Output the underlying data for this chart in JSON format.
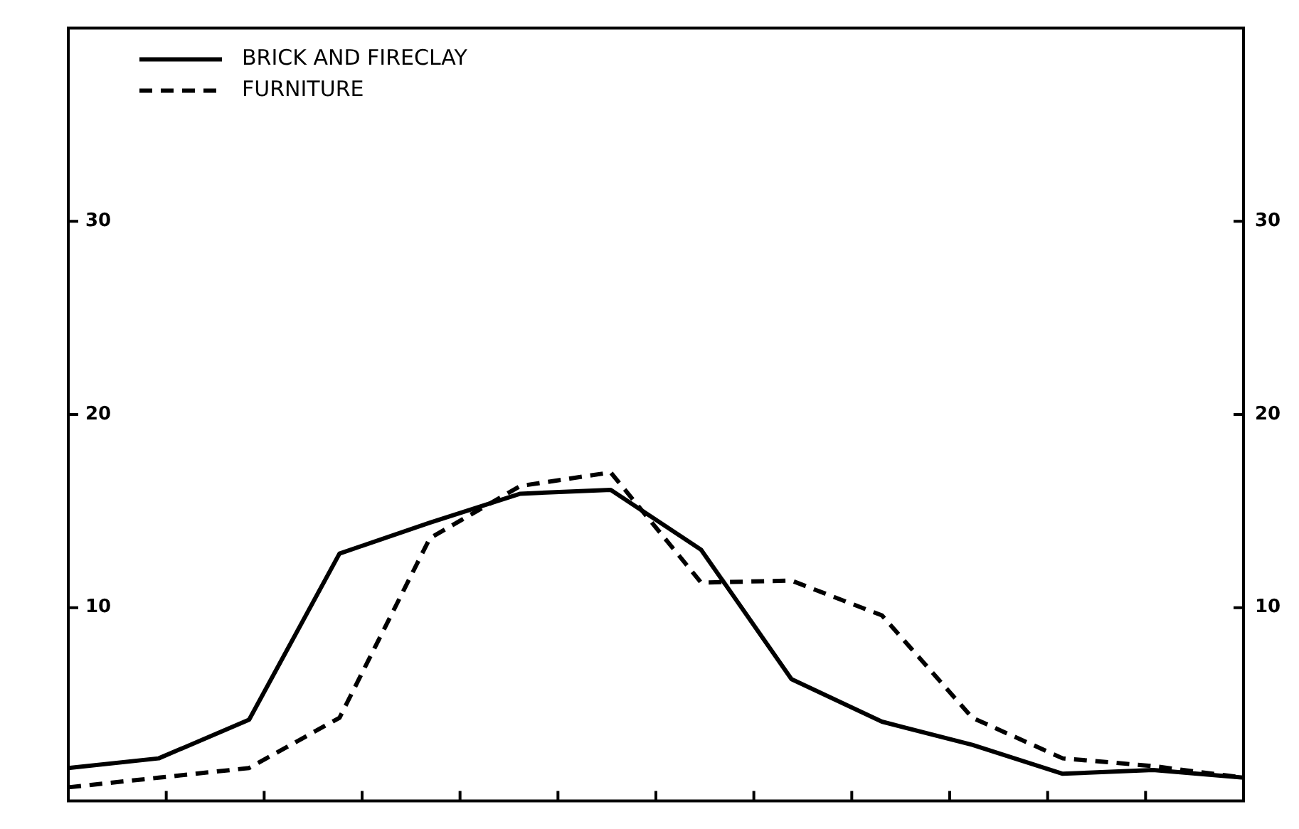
{
  "chart_data": {
    "type": "line",
    "categories": [
      null,
      null,
      null,
      null,
      null,
      null,
      null,
      null,
      null,
      null,
      null,
      null,
      null,
      null
    ],
    "ylim": [
      0,
      40
    ],
    "yticks": [
      10,
      20,
      30
    ],
    "y2lim": [
      0,
      40
    ],
    "y2ticks": [
      10,
      20,
      30
    ],
    "tick_labels": "y",
    "grid": false,
    "legend": "top left",
    "marker": "none",
    "series": [
      {
        "name": "BRICK AND FIRECLAY",
        "color": "#000000",
        "line_style": "solid",
        "values": [
          1.7,
          2.2,
          4.2,
          12.8,
          14.4,
          15.9,
          16.1,
          13.0,
          6.3,
          4.1,
          2.9,
          1.4,
          1.6,
          1.2
        ]
      },
      {
        "name": "FURNITURE",
        "color": "#000000",
        "line_style": "dashed",
        "values": [
          0.7,
          1.2,
          1.7,
          4.3,
          13.6,
          16.3,
          17.0,
          11.3,
          11.4,
          9.6,
          4.3,
          2.2,
          1.8,
          1.2
        ]
      }
    ]
  }
}
